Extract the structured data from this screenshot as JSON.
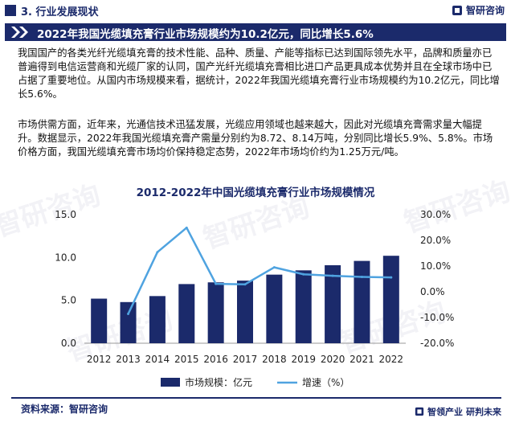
{
  "header": {
    "section_title": "3. 行业发展现状",
    "brand": "智研咨询",
    "banner_title": "2022年我国光缆填充膏行业市场规模约为10.2亿元，同比增长5.6%"
  },
  "paragraphs": [
    "我国国产的各类光纤光缆填充膏的技术性能、品种、质量、产能等指标已达到国际领先水平，品牌和质量亦已普遍得到电信运营商和光缆厂家的认同，国产光纤光缆填充膏相比进口产品更具成本优势并且在全球市场中已占据了重要地位。从国内市场规模来看，据统计，2022年我国光缆填充膏行业市场规模约为10.2亿元，同比增长5.6%。",
    "市场供需方面，近年来，光通信技术迅猛发展，光缆应用领域也越来越大，因此对光缆填充膏需求量大幅提升。数据显示，2022年我国光缆填充膏产需量分别约为8.72、8.14万吨，分别同比增长5.9%、5.8%。市场价格方面，我国光缆填充膏市场均价保持稳定态势，2022年市场均价约为1.25万元/吨。"
  ],
  "chart_data": {
    "type": "bar+line",
    "title": "2012-2022年中国光缆填充膏行业市场规模情况",
    "categories": [
      "2012",
      "2013",
      "2014",
      "2015",
      "2016",
      "2017",
      "2018",
      "2019",
      "2020",
      "2021",
      "2022"
    ],
    "series": [
      {
        "name": "市场规模：亿元",
        "type": "bar",
        "axis": "left",
        "values": [
          5.2,
          4.8,
          5.5,
          6.9,
          7.1,
          7.3,
          8.0,
          8.5,
          9.1,
          9.6,
          10.2
        ]
      },
      {
        "name": "增速（%）",
        "type": "line",
        "axis": "right",
        "values": [
          null,
          -8.6,
          15.4,
          24.9,
          3.1,
          2.9,
          9.5,
          6.8,
          6.2,
          5.8,
          5.6
        ]
      }
    ],
    "left_axis": {
      "min": 0,
      "max": 15,
      "ticks": [
        "0.0",
        "5.0",
        "10.0",
        "15.0"
      ]
    },
    "right_axis": {
      "min": -20,
      "max": 30,
      "ticks": [
        "-20.0%",
        "-10.0%",
        "0.0%",
        "10.0%",
        "20.0%",
        "30.0%"
      ]
    },
    "legend_position": "bottom",
    "colors": {
      "bar": "#1b2a6b",
      "line": "#4fa3e0"
    }
  },
  "footer": {
    "source": "资料来源：智研咨询",
    "slogan_a": "智领产业",
    "slogan_b": "研判未来"
  },
  "watermark_text": "智研咨询"
}
